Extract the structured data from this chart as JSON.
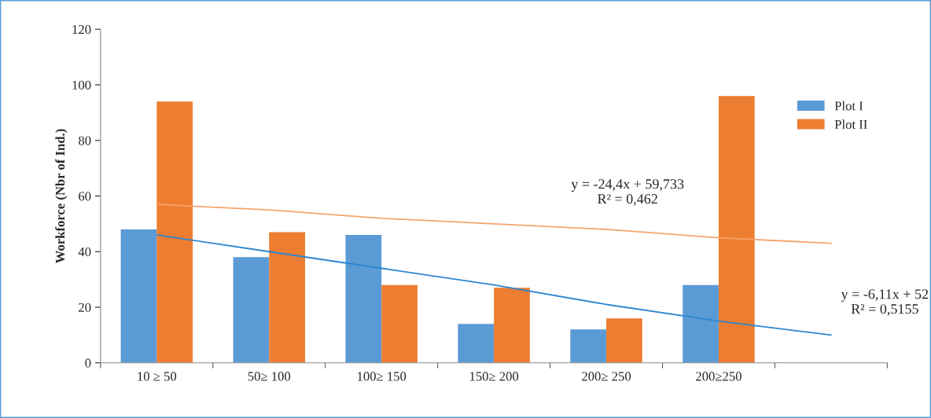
{
  "chart_data": {
    "type": "bar",
    "ylabel": "Workforce (Nbr of Ind.)",
    "categories": [
      "10 ≥ 50",
      "50≥ 100",
      "100≥ 150",
      "150≥ 200",
      "200≥ 250",
      "200≥250",
      null
    ],
    "series": [
      {
        "name": "Plot I",
        "color": "#5b9bd5",
        "values": [
          48,
          38,
          46,
          14,
          12,
          28,
          null
        ]
      },
      {
        "name": "Plot II",
        "color": "#ed7d31",
        "values": [
          94,
          47,
          28,
          27,
          16,
          96,
          null
        ]
      },
      {
        "type": "line",
        "color": "#f4a46c",
        "values": [
          57,
          55,
          52,
          50,
          48,
          45,
          43
        ]
      },
      {
        "type": "line",
        "color": "#2e86d0",
        "values": [
          46,
          40,
          34,
          28,
          21,
          15,
          10
        ]
      }
    ],
    "ylim": [
      0,
      120
    ],
    "yticks": [
      0,
      20,
      40,
      60,
      80,
      100,
      120
    ],
    "annotations": [
      "y = -24,4x + 59,733\nR² = 0,462",
      "y = -6,11x + 52\nR² = 0,5155"
    ],
    "legend": "top right",
    "grid": false
  }
}
